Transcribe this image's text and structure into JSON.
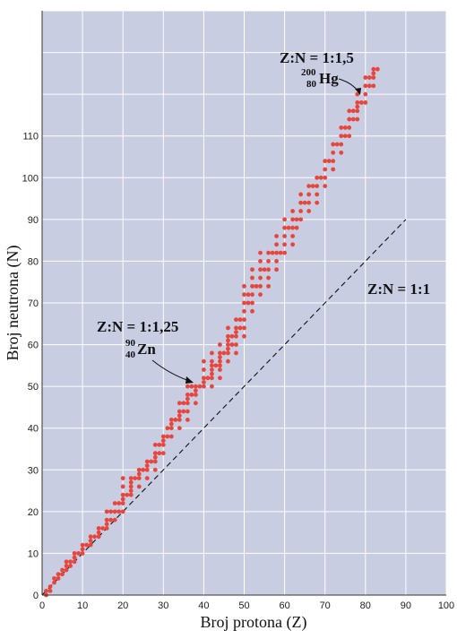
{
  "chart_data": {
    "type": "scatter",
    "xlabel": "Broj protona (Z)",
    "ylabel": "Broj neutrona (N)",
    "xlim": [
      0,
      100
    ],
    "ylim": [
      0,
      140
    ],
    "x_ticks": [
      "0",
      "10",
      "20",
      "30",
      "40",
      "50",
      "60",
      "70",
      "80",
      "90",
      "100"
    ],
    "y_ticks": [
      "0",
      "10",
      "20",
      "30",
      "40",
      "50",
      "60",
      "70",
      "80",
      "90",
      "100",
      "110"
    ],
    "grid": true,
    "background_color": "#c8cde2",
    "point_color": "#e8453c",
    "series": [
      {
        "points": [
          [
            1,
            0
          ],
          [
            1,
            1
          ],
          [
            2,
            1
          ],
          [
            2,
            2
          ],
          [
            3,
            3
          ],
          [
            3,
            4
          ],
          [
            4,
            4
          ],
          [
            4,
            5
          ],
          [
            5,
            5
          ],
          [
            5,
            6
          ],
          [
            6,
            6
          ],
          [
            6,
            7
          ],
          [
            6,
            8
          ],
          [
            7,
            7
          ],
          [
            7,
            8
          ],
          [
            8,
            8
          ],
          [
            8,
            9
          ],
          [
            8,
            10
          ],
          [
            9,
            10
          ],
          [
            10,
            10
          ],
          [
            10,
            11
          ],
          [
            10,
            12
          ],
          [
            11,
            12
          ],
          [
            12,
            12
          ],
          [
            12,
            13
          ],
          [
            12,
            14
          ],
          [
            13,
            14
          ],
          [
            14,
            14
          ],
          [
            14,
            15
          ],
          [
            14,
            16
          ],
          [
            15,
            16
          ],
          [
            16,
            16
          ],
          [
            16,
            17
          ],
          [
            16,
            18
          ],
          [
            16,
            20
          ],
          [
            17,
            18
          ],
          [
            17,
            20
          ],
          [
            18,
            18
          ],
          [
            18,
            20
          ],
          [
            18,
            22
          ],
          [
            19,
            20
          ],
          [
            19,
            22
          ],
          [
            20,
            20
          ],
          [
            20,
            22
          ],
          [
            20,
            23
          ],
          [
            20,
            24
          ],
          [
            20,
            26
          ],
          [
            20,
            28
          ],
          [
            21,
            24
          ],
          [
            22,
            24
          ],
          [
            22,
            25
          ],
          [
            22,
            26
          ],
          [
            22,
            27
          ],
          [
            22,
            28
          ],
          [
            23,
            28
          ],
          [
            24,
            26
          ],
          [
            24,
            28
          ],
          [
            24,
            29
          ],
          [
            24,
            30
          ],
          [
            25,
            30
          ],
          [
            26,
            28
          ],
          [
            26,
            30
          ],
          [
            26,
            31
          ],
          [
            26,
            32
          ],
          [
            27,
            32
          ],
          [
            28,
            30
          ],
          [
            28,
            32
          ],
          [
            28,
            33
          ],
          [
            28,
            34
          ],
          [
            28,
            36
          ],
          [
            29,
            34
          ],
          [
            29,
            36
          ],
          [
            30,
            34
          ],
          [
            30,
            36
          ],
          [
            30,
            37
          ],
          [
            30,
            38
          ],
          [
            31,
            38
          ],
          [
            31,
            40
          ],
          [
            32,
            38
          ],
          [
            32,
            40
          ],
          [
            32,
            41
          ],
          [
            32,
            42
          ],
          [
            33,
            42
          ],
          [
            34,
            40
          ],
          [
            34,
            42
          ],
          [
            34,
            43
          ],
          [
            34,
            44
          ],
          [
            34,
            46
          ],
          [
            35,
            44
          ],
          [
            35,
            46
          ],
          [
            36,
            42
          ],
          [
            36,
            44
          ],
          [
            36,
            46
          ],
          [
            36,
            47
          ],
          [
            36,
            48
          ],
          [
            36,
            50
          ],
          [
            37,
            48
          ],
          [
            37,
            50
          ],
          [
            38,
            46
          ],
          [
            38,
            48
          ],
          [
            38,
            49
          ],
          [
            38,
            50
          ],
          [
            39,
            50
          ],
          [
            40,
            50
          ],
          [
            40,
            51
          ],
          [
            40,
            52
          ],
          [
            40,
            54
          ],
          [
            40,
            56
          ],
          [
            41,
            52
          ],
          [
            42,
            50
          ],
          [
            42,
            52
          ],
          [
            42,
            53
          ],
          [
            42,
            54
          ],
          [
            42,
            55
          ],
          [
            42,
            56
          ],
          [
            42,
            58
          ],
          [
            43,
            55
          ],
          [
            44,
            52
          ],
          [
            44,
            54
          ],
          [
            44,
            55
          ],
          [
            44,
            56
          ],
          [
            44,
            57
          ],
          [
            44,
            58
          ],
          [
            44,
            60
          ],
          [
            45,
            58
          ],
          [
            46,
            56
          ],
          [
            46,
            58
          ],
          [
            46,
            59
          ],
          [
            46,
            60
          ],
          [
            46,
            61
          ],
          [
            46,
            62
          ],
          [
            46,
            64
          ],
          [
            47,
            60
          ],
          [
            47,
            62
          ],
          [
            48,
            58
          ],
          [
            48,
            60
          ],
          [
            48,
            62
          ],
          [
            48,
            63
          ],
          [
            48,
            64
          ],
          [
            48,
            66
          ],
          [
            49,
            64
          ],
          [
            49,
            66
          ],
          [
            50,
            62
          ],
          [
            50,
            64
          ],
          [
            50,
            66
          ],
          [
            50,
            68
          ],
          [
            50,
            70
          ],
          [
            50,
            72
          ],
          [
            50,
            74
          ],
          [
            51,
            70
          ],
          [
            51,
            72
          ],
          [
            52,
            68
          ],
          [
            52,
            70
          ],
          [
            52,
            72
          ],
          [
            52,
            74
          ],
          [
            52,
            76
          ],
          [
            52,
            78
          ],
          [
            53,
            74
          ],
          [
            54,
            72
          ],
          [
            54,
            74
          ],
          [
            54,
            76
          ],
          [
            54,
            78
          ],
          [
            54,
            80
          ],
          [
            54,
            82
          ],
          [
            55,
            78
          ],
          [
            56,
            74
          ],
          [
            56,
            76
          ],
          [
            56,
            78
          ],
          [
            56,
            80
          ],
          [
            56,
            82
          ],
          [
            57,
            82
          ],
          [
            58,
            78
          ],
          [
            58,
            80
          ],
          [
            58,
            82
          ],
          [
            58,
            84
          ],
          [
            58,
            86
          ],
          [
            59,
            82
          ],
          [
            60,
            82
          ],
          [
            60,
            84
          ],
          [
            60,
            86
          ],
          [
            60,
            88
          ],
          [
            60,
            90
          ],
          [
            61,
            88
          ],
          [
            62,
            84
          ],
          [
            62,
            86
          ],
          [
            62,
            88
          ],
          [
            62,
            90
          ],
          [
            62,
            92
          ],
          [
            63,
            88
          ],
          [
            63,
            90
          ],
          [
            64,
            90
          ],
          [
            64,
            92
          ],
          [
            64,
            94
          ],
          [
            64,
            96
          ],
          [
            65,
            94
          ],
          [
            66,
            92
          ],
          [
            66,
            94
          ],
          [
            66,
            96
          ],
          [
            66,
            98
          ],
          [
            67,
            98
          ],
          [
            68,
            94
          ],
          [
            68,
            96
          ],
          [
            68,
            98
          ],
          [
            68,
            100
          ],
          [
            69,
            100
          ],
          [
            70,
            98
          ],
          [
            70,
            100
          ],
          [
            70,
            102
          ],
          [
            70,
            104
          ],
          [
            71,
            104
          ],
          [
            72,
            102
          ],
          [
            72,
            104
          ],
          [
            72,
            106
          ],
          [
            72,
            108
          ],
          [
            73,
            108
          ],
          [
            74,
            106
          ],
          [
            74,
            108
          ],
          [
            74,
            110
          ],
          [
            74,
            112
          ],
          [
            75,
            110
          ],
          [
            75,
            112
          ],
          [
            76,
            110
          ],
          [
            76,
            112
          ],
          [
            76,
            114
          ],
          [
            76,
            116
          ],
          [
            77,
            114
          ],
          [
            77,
            116
          ],
          [
            78,
            114
          ],
          [
            78,
            116
          ],
          [
            78,
            117
          ],
          [
            78,
            118
          ],
          [
            78,
            120
          ],
          [
            79,
            118
          ],
          [
            80,
            118
          ],
          [
            80,
            120
          ],
          [
            80,
            122
          ],
          [
            80,
            124
          ],
          [
            81,
            122
          ],
          [
            81,
            124
          ],
          [
            82,
            122
          ],
          [
            82,
            124
          ],
          [
            82,
            125
          ],
          [
            82,
            126
          ],
          [
            83,
            126
          ]
        ]
      }
    ],
    "reference_line": {
      "label": "Z:N = 1:1",
      "from": [
        0,
        0
      ],
      "to": [
        90,
        90
      ]
    },
    "annotations": [
      {
        "ratio": "Z:N = 1:1,25",
        "mass": "90",
        "atomic": "40",
        "symbol": "Zn",
        "point": [
          40,
          50
        ]
      },
      {
        "ratio": "Z:N = 1:1,5",
        "mass": "200",
        "atomic": "80",
        "symbol": "Hg",
        "point": [
          80,
          120
        ]
      }
    ]
  }
}
